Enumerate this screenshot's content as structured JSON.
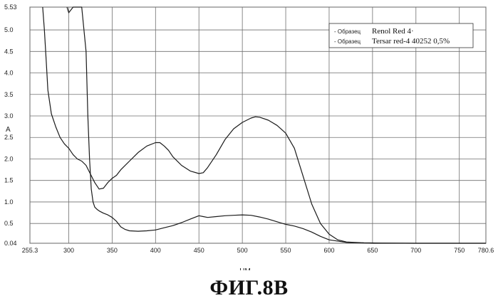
{
  "chart_data": {
    "type": "line",
    "title": "",
    "xlabel": "НМ",
    "ylabel": "A",
    "xlim": [
      255.3,
      780.6
    ],
    "ylim": [
      0.04,
      5.53
    ],
    "grid": true,
    "x_ticks": [
      {
        "value": 255.3,
        "label": "255.3"
      },
      {
        "value": 300,
        "label": "300"
      },
      {
        "value": 350,
        "label": "350"
      },
      {
        "value": 400,
        "label": "400"
      },
      {
        "value": 450,
        "label": "450"
      },
      {
        "value": 500,
        "label": "500"
      },
      {
        "value": 550,
        "label": "550"
      },
      {
        "value": 600,
        "label": "600"
      },
      {
        "value": 650,
        "label": "650"
      },
      {
        "value": 700,
        "label": "700"
      },
      {
        "value": 750,
        "label": "750"
      },
      {
        "value": 780.6,
        "label": "780.6"
      }
    ],
    "y_ticks": [
      {
        "value": 0.04,
        "label": "0.04"
      },
      {
        "value": 0.5,
        "label": "0.5"
      },
      {
        "value": 1.0,
        "label": "1.0"
      },
      {
        "value": 1.5,
        "label": "1.5"
      },
      {
        "value": 2.0,
        "label": "2.0"
      },
      {
        "value": 2.5,
        "label": "2.5"
      },
      {
        "value": 3.0,
        "label": "3.0"
      },
      {
        "value": 3.5,
        "label": "3.5"
      },
      {
        "value": 4.0,
        "label": "4.0"
      },
      {
        "value": 4.5,
        "label": "4.5"
      },
      {
        "value": 5.0,
        "label": "5.0"
      },
      {
        "value": 5.53,
        "label": "5.53"
      }
    ],
    "legend": {
      "position": "top-right",
      "entries": [
        {
          "prefix": "- Образец",
          "name": "Renol Red 4·"
        },
        {
          "prefix": "- Образец",
          "name": "Tersar red-4 40252 0,5%"
        }
      ]
    },
    "series": [
      {
        "name": "Renol Red 4·",
        "x": [
          270,
          272,
          274,
          276,
          280,
          285,
          290,
          295,
          300,
          305,
          310,
          315,
          320,
          325,
          330,
          335,
          340,
          345,
          350,
          355,
          360,
          370,
          380,
          390,
          400,
          405,
          410,
          415,
          420,
          430,
          440,
          450,
          455,
          460,
          470,
          480,
          490,
          500,
          510,
          515,
          520,
          530,
          540,
          550,
          560,
          570,
          580,
          590,
          600,
          610,
          620,
          640,
          660,
          700,
          750,
          780.6
        ],
        "y": [
          5.53,
          5.0,
          4.3,
          3.6,
          3.05,
          2.75,
          2.5,
          2.35,
          2.25,
          2.1,
          2.0,
          1.95,
          1.85,
          1.65,
          1.45,
          1.3,
          1.32,
          1.45,
          1.55,
          1.62,
          1.75,
          1.95,
          2.15,
          2.3,
          2.38,
          2.38,
          2.3,
          2.2,
          2.05,
          1.85,
          1.72,
          1.66,
          1.68,
          1.8,
          2.1,
          2.45,
          2.7,
          2.85,
          2.95,
          2.98,
          2.97,
          2.9,
          2.78,
          2.6,
          2.25,
          1.6,
          0.95,
          0.5,
          0.25,
          0.12,
          0.07,
          0.05,
          0.045,
          0.04,
          0.04,
          0.04
        ]
      },
      {
        "name": "Tersar red-4 40252 0,5%",
        "x": [
          298,
          300,
          305,
          310,
          315,
          320,
          322,
          324,
          326,
          328,
          330,
          333,
          336,
          340,
          345,
          350,
          355,
          360,
          365,
          370,
          380,
          390,
          400,
          410,
          420,
          430,
          440,
          450,
          455,
          460,
          470,
          480,
          490,
          500,
          510,
          520,
          530,
          540,
          550,
          560,
          570,
          580,
          590,
          600,
          620,
          650,
          700,
          750,
          780.6
        ],
        "y": [
          5.53,
          5.4,
          5.53,
          5.53,
          5.53,
          4.5,
          3.0,
          2.0,
          1.3,
          1.0,
          0.88,
          0.82,
          0.78,
          0.74,
          0.7,
          0.64,
          0.55,
          0.42,
          0.36,
          0.33,
          0.32,
          0.33,
          0.35,
          0.4,
          0.45,
          0.52,
          0.6,
          0.68,
          0.66,
          0.64,
          0.66,
          0.68,
          0.69,
          0.7,
          0.69,
          0.65,
          0.6,
          0.54,
          0.48,
          0.44,
          0.38,
          0.3,
          0.2,
          0.12,
          0.06,
          0.04,
          0.04,
          0.04,
          0.04
        ]
      }
    ]
  },
  "caption": "ФИГ.8B"
}
